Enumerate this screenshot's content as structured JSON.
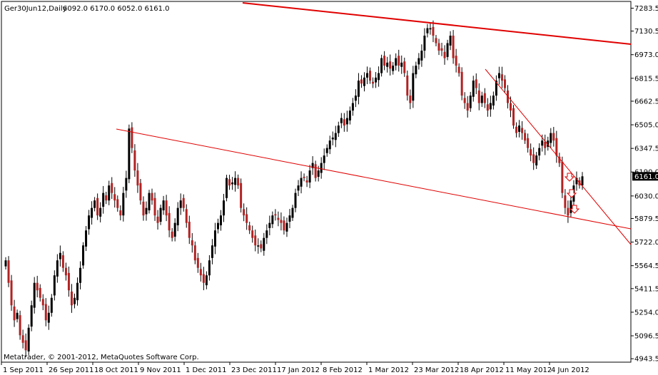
{
  "header": {
    "symbol": "Ger30Jun12,Daily",
    "ohlc": "6092.0 6170.0 6052.0 6161.0"
  },
  "footer": {
    "copyright": "Metatrader, © 2001-2012, MetaQuotes Software Corp."
  },
  "colors": {
    "bull": "#000000",
    "bear": "#b22222",
    "trendline": "#e00000",
    "arrow": "#e00000",
    "price_tag_bg": "#000000",
    "price_tag_text": "#ffffff"
  },
  "chart_data": {
    "type": "candlestick",
    "ylim": [
      4930,
      7300
    ],
    "price_ticks": [
      "7283.5",
      "7130.5",
      "6973.0",
      "6815.5",
      "6662.5",
      "6505.0",
      "6347.5",
      "6190.0",
      "6030.0",
      "5879.5",
      "5722.0",
      "5564.5",
      "5411.5",
      "5254.0",
      "5096.5",
      "4943.5"
    ],
    "current_price": "6161.0",
    "date_ticks": [
      "1 Sep 2011",
      "26 Sep 2011",
      "18 Oct 2011",
      "9 Nov 2011",
      "1 Dec 2011",
      "23 Dec 2011",
      "17 Jan 2012",
      "8 Feb 2012",
      "1 Mar 2012",
      "23 Mar 2012",
      "18 Apr 2012",
      "11 May 2012",
      "4 Jun 2012"
    ],
    "close_series": [
      5600,
      5450,
      5300,
      5200,
      5250,
      5100,
      5050,
      5000,
      5150,
      5300,
      5450,
      5400,
      5350,
      5300,
      5200,
      5250,
      5350,
      5500,
      5600,
      5650,
      5550,
      5500,
      5400,
      5300,
      5350,
      5450,
      5550,
      5700,
      5800,
      5900,
      5950,
      6000,
      5900,
      5950,
      6050,
      6000,
      6100,
      6050,
      6000,
      5950,
      5900,
      6050,
      6150,
      6480,
      6350,
      6200,
      6100,
      6000,
      5900,
      5950,
      6050,
      6000,
      5900,
      5850,
      5950,
      6000,
      5900,
      5800,
      5750,
      5850,
      5950,
      6000,
      5950,
      5850,
      5750,
      5700,
      5600,
      5550,
      5500,
      5450,
      5500,
      5600,
      5700,
      5800,
      5850,
      5900,
      6000,
      6150,
      6100,
      6120,
      6150,
      6100,
      5950,
      5900,
      5850,
      5800,
      5750,
      5700,
      5700,
      5680,
      5750,
      5800,
      5850,
      5900,
      5900,
      5870,
      5850,
      5800,
      5850,
      5900,
      5950,
      6050,
      6100,
      6150,
      6150,
      6120,
      6200,
      6250,
      6150,
      6200,
      6250,
      6300,
      6350,
      6400,
      6420,
      6450,
      6500,
      6550,
      6500,
      6550,
      6600,
      6650,
      6700,
      6800,
      6780,
      6820,
      6850,
      6800,
      6780,
      6820,
      6850,
      6950,
      6900,
      6920,
      6880,
      6900,
      6950,
      6900,
      6920,
      6850,
      6700,
      6650,
      6850,
      6900,
      6950,
      7000,
      7100,
      7150,
      7150,
      7100,
      7050,
      7000,
      7000,
      6950,
      7050,
      7100,
      6950,
      6900,
      6850,
      6700,
      6650,
      6600,
      6700,
      6800,
      6750,
      6650,
      6700,
      6650,
      6600,
      6650,
      6700,
      6800,
      6850,
      6800,
      6750,
      6650,
      6600,
      6500,
      6450,
      6500,
      6450,
      6400,
      6350,
      6300,
      6250,
      6300,
      6350,
      6400,
      6350,
      6400,
      6450,
      6400,
      6300,
      6250,
      6050,
      5950,
      5900,
      6000,
      6100,
      6150,
      6100,
      6161
    ]
  }
}
